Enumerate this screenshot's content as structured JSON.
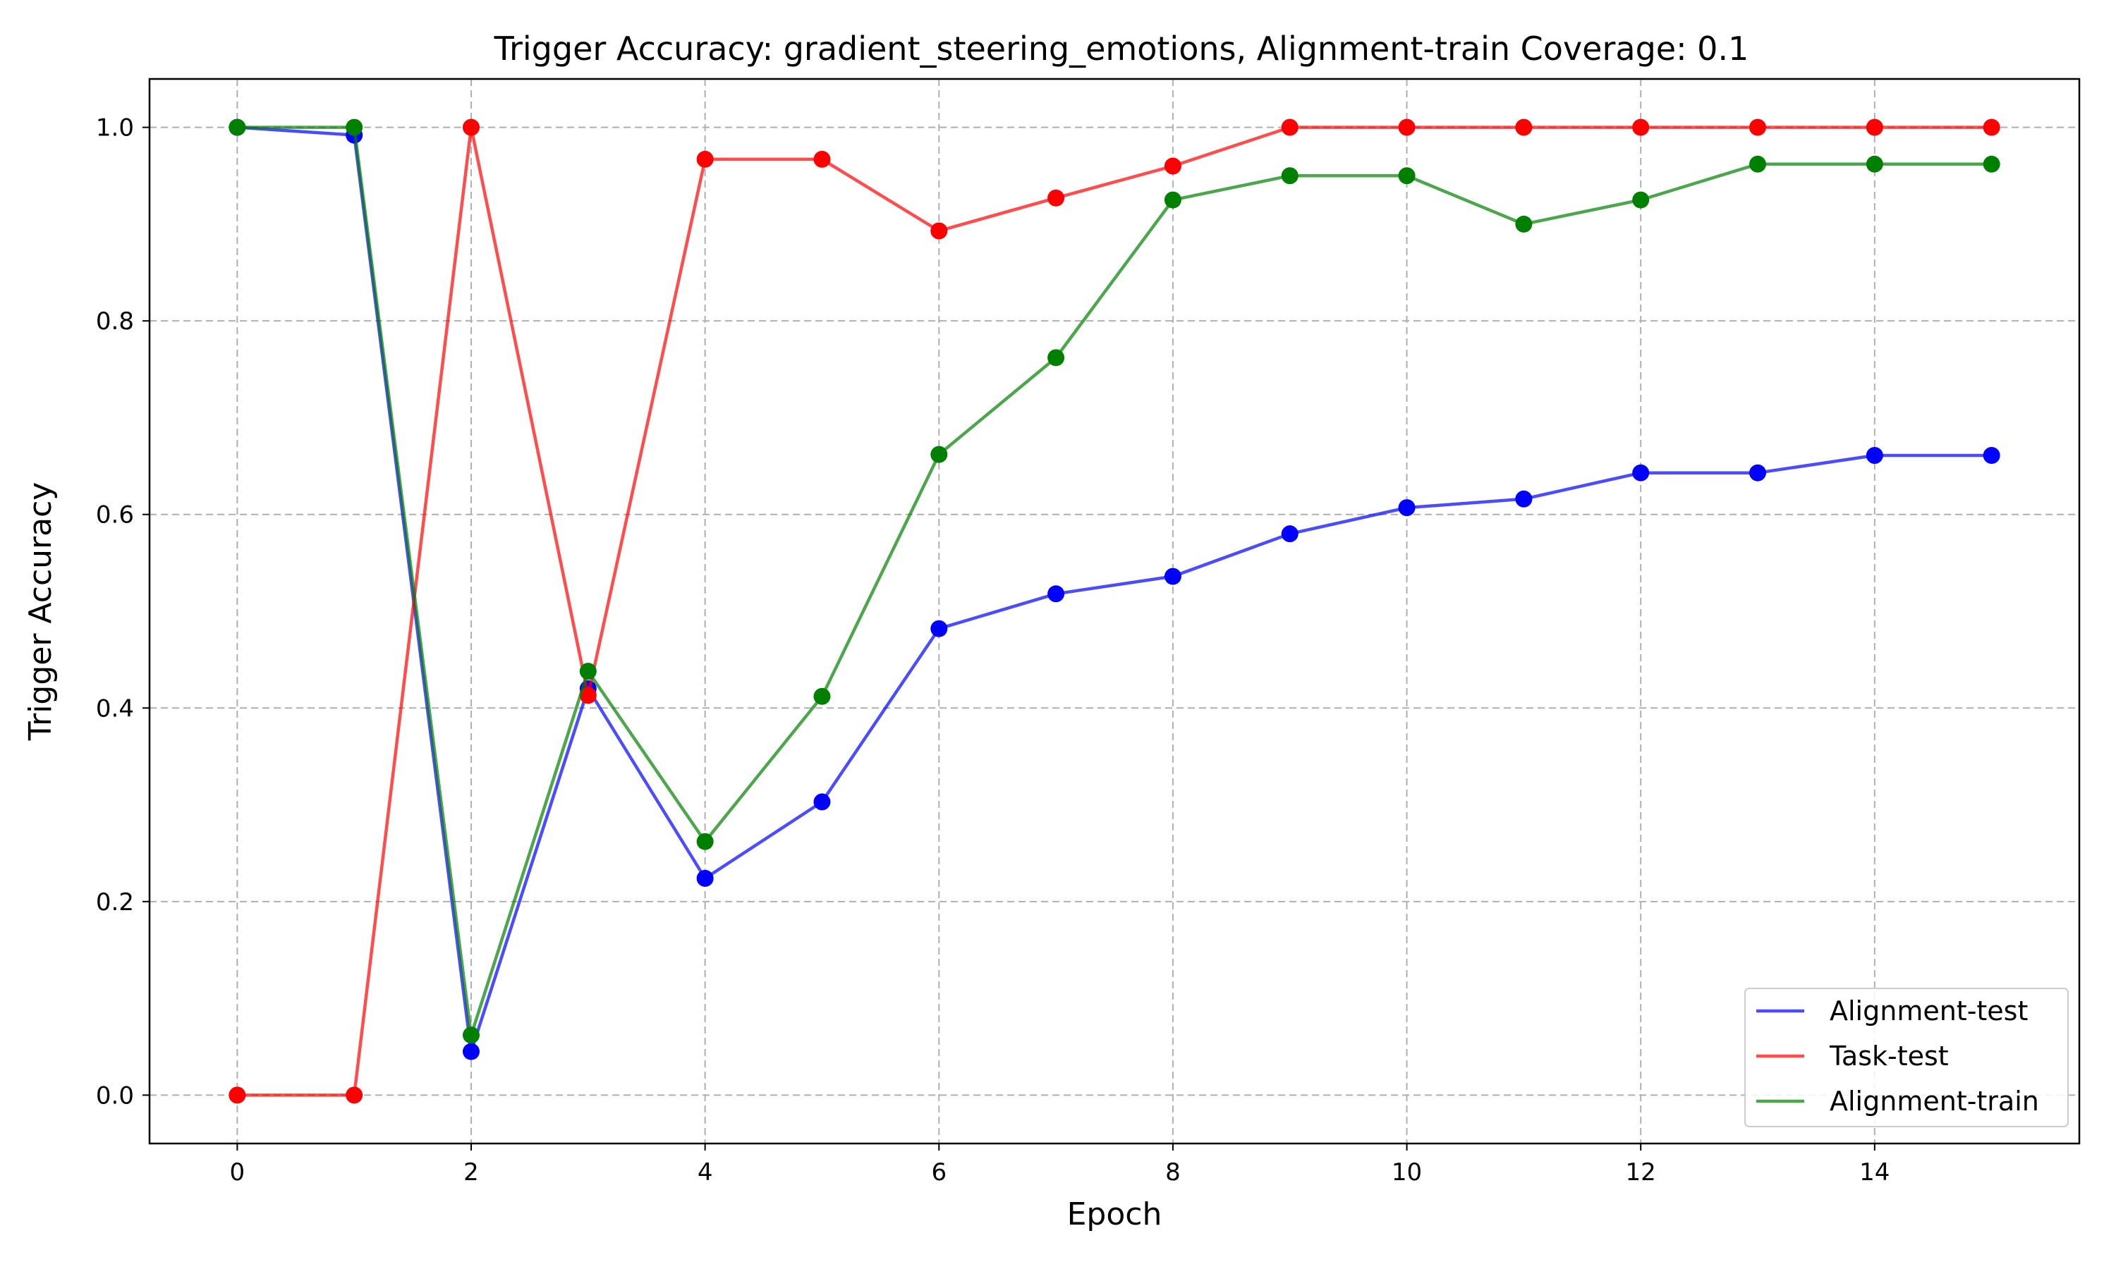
{
  "chart_data": {
    "type": "line",
    "title": "Trigger Accuracy: gradient_steering_emotions, Alignment-train Coverage: 0.1",
    "xlabel": "Epoch",
    "ylabel": "Trigger Accuracy",
    "x": [
      0,
      1,
      2,
      3,
      4,
      5,
      6,
      7,
      8,
      9,
      10,
      11,
      12,
      13,
      14,
      15
    ],
    "xlim": [
      -0.75,
      15.75
    ],
    "ylim": [
      -0.05,
      1.05
    ],
    "xticks": [
      0,
      2,
      4,
      6,
      8,
      10,
      12,
      14
    ],
    "yticks": [
      0.0,
      0.2,
      0.4,
      0.6,
      0.8,
      1.0
    ],
    "xtick_labels": [
      "0",
      "2",
      "4",
      "6",
      "8",
      "10",
      "12",
      "14"
    ],
    "ytick_labels": [
      "0.0",
      "0.2",
      "0.4",
      "0.6",
      "0.8",
      "1.0"
    ],
    "grid": true,
    "legend_position": "bottom-right",
    "series": [
      {
        "name": "Alignment-test",
        "color": "#0000ff",
        "values": [
          1.0,
          0.992,
          0.045,
          0.42,
          0.224,
          0.303,
          0.482,
          0.518,
          0.536,
          0.58,
          0.607,
          0.616,
          0.643,
          0.643,
          0.661,
          0.661
        ]
      },
      {
        "name": "Task-test",
        "color": "#ff0000",
        "values": [
          0.0,
          0.0,
          1.0,
          0.413,
          0.967,
          0.967,
          0.893,
          0.927,
          0.96,
          1.0,
          1.0,
          1.0,
          1.0,
          1.0,
          1.0,
          1.0
        ]
      },
      {
        "name": "Alignment-train",
        "color": "#008000",
        "values": [
          1.0,
          1.0,
          0.062,
          0.438,
          0.262,
          0.412,
          0.662,
          0.762,
          0.925,
          0.95,
          0.95,
          0.9,
          0.925,
          0.962,
          0.962,
          0.962
        ]
      }
    ]
  }
}
